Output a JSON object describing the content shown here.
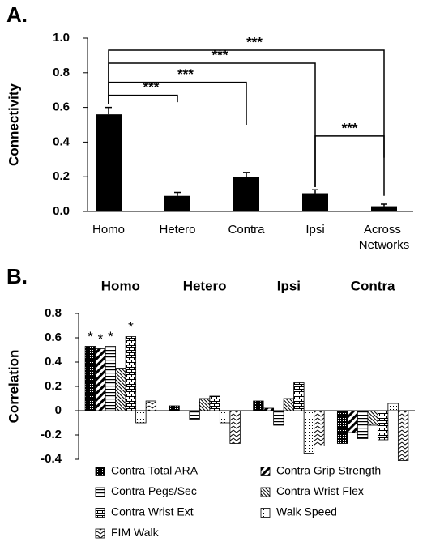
{
  "chart_data": [
    {
      "panel": "A.",
      "type": "bar",
      "ylabel": "Connectivity",
      "categories": [
        "Homo",
        "Hetero",
        "Contra",
        "Ipsi",
        "Across Networks"
      ],
      "values": [
        0.56,
        0.09,
        0.2,
        0.105,
        0.03
      ],
      "errors": [
        0.04,
        0.02,
        0.025,
        0.02,
        0.012
      ],
      "color": "#000000",
      "ylim": [
        0,
        1
      ],
      "yticks": [
        {
          "value": 0,
          "label": "0.0"
        },
        0.2,
        0.4,
        0.6,
        0.8,
        {
          "value": 1,
          "label": "1.0"
        }
      ],
      "brackets": [
        {
          "between": [
            "Homo",
            "Hetero"
          ],
          "label": "***"
        },
        {
          "between": [
            "Homo",
            "Contra"
          ],
          "label": "***"
        },
        {
          "between": [
            "Homo",
            "Ipsi"
          ],
          "label": "***"
        },
        {
          "between": [
            "Homo",
            "Across Networks"
          ],
          "label": "***"
        },
        {
          "between": [
            "Ipsi",
            "Across Networks"
          ],
          "label": "***"
        }
      ]
    },
    {
      "panel": "B.",
      "type": "grouped_bar",
      "ylabel": "Correlation",
      "categories": [
        "Homo",
        "Hetero",
        "Ipsi",
        "Contra"
      ],
      "series": [
        {
          "name": "Contra Total ARA",
          "pattern": "dense-dots",
          "color": "#000000",
          "values": [
            0.53,
            0.04,
            0.08,
            -0.27
          ],
          "annotations": [
            "*",
            null,
            null,
            null
          ]
        },
        {
          "name": "Contra Grip Strength",
          "pattern": "wide-diagonal",
          "color": "#000000",
          "values": [
            0.51,
            0.0,
            0.02,
            -0.18
          ],
          "annotations": [
            "*",
            null,
            null,
            null
          ]
        },
        {
          "name": "Contra Pegs/Sec",
          "pattern": "horizontal-lines",
          "color": "#000000",
          "values": [
            0.53,
            -0.07,
            -0.12,
            -0.23
          ],
          "annotations": [
            "*",
            null,
            null,
            null
          ]
        },
        {
          "name": "Contra Wrist Flex",
          "pattern": "thin-diagonal",
          "color": "#000000",
          "values": [
            0.35,
            0.1,
            0.1,
            -0.12
          ],
          "annotations": [
            null,
            null,
            null,
            null
          ]
        },
        {
          "name": "Contra Wrist Ext",
          "pattern": "brick",
          "color": "#000000",
          "values": [
            0.61,
            0.12,
            0.23,
            -0.24
          ],
          "annotations": [
            "*",
            null,
            null,
            null
          ]
        },
        {
          "name": "Walk Speed",
          "pattern": "sparse-dots",
          "color": "#000000",
          "values": [
            -0.1,
            -0.1,
            -0.35,
            0.06
          ],
          "annotations": [
            null,
            null,
            null,
            null
          ]
        },
        {
          "name": "FIM Walk",
          "pattern": "zigzag",
          "color": "#000000",
          "values": [
            0.08,
            -0.27,
            -0.29,
            -0.41
          ],
          "annotations": [
            null,
            null,
            null,
            null
          ]
        }
      ],
      "ylim": [
        -0.4,
        0.8
      ],
      "yticks": [
        -0.4,
        -0.2,
        0,
        0.2,
        0.4,
        0.6,
        0.8
      ],
      "legend": "bottom"
    }
  ]
}
